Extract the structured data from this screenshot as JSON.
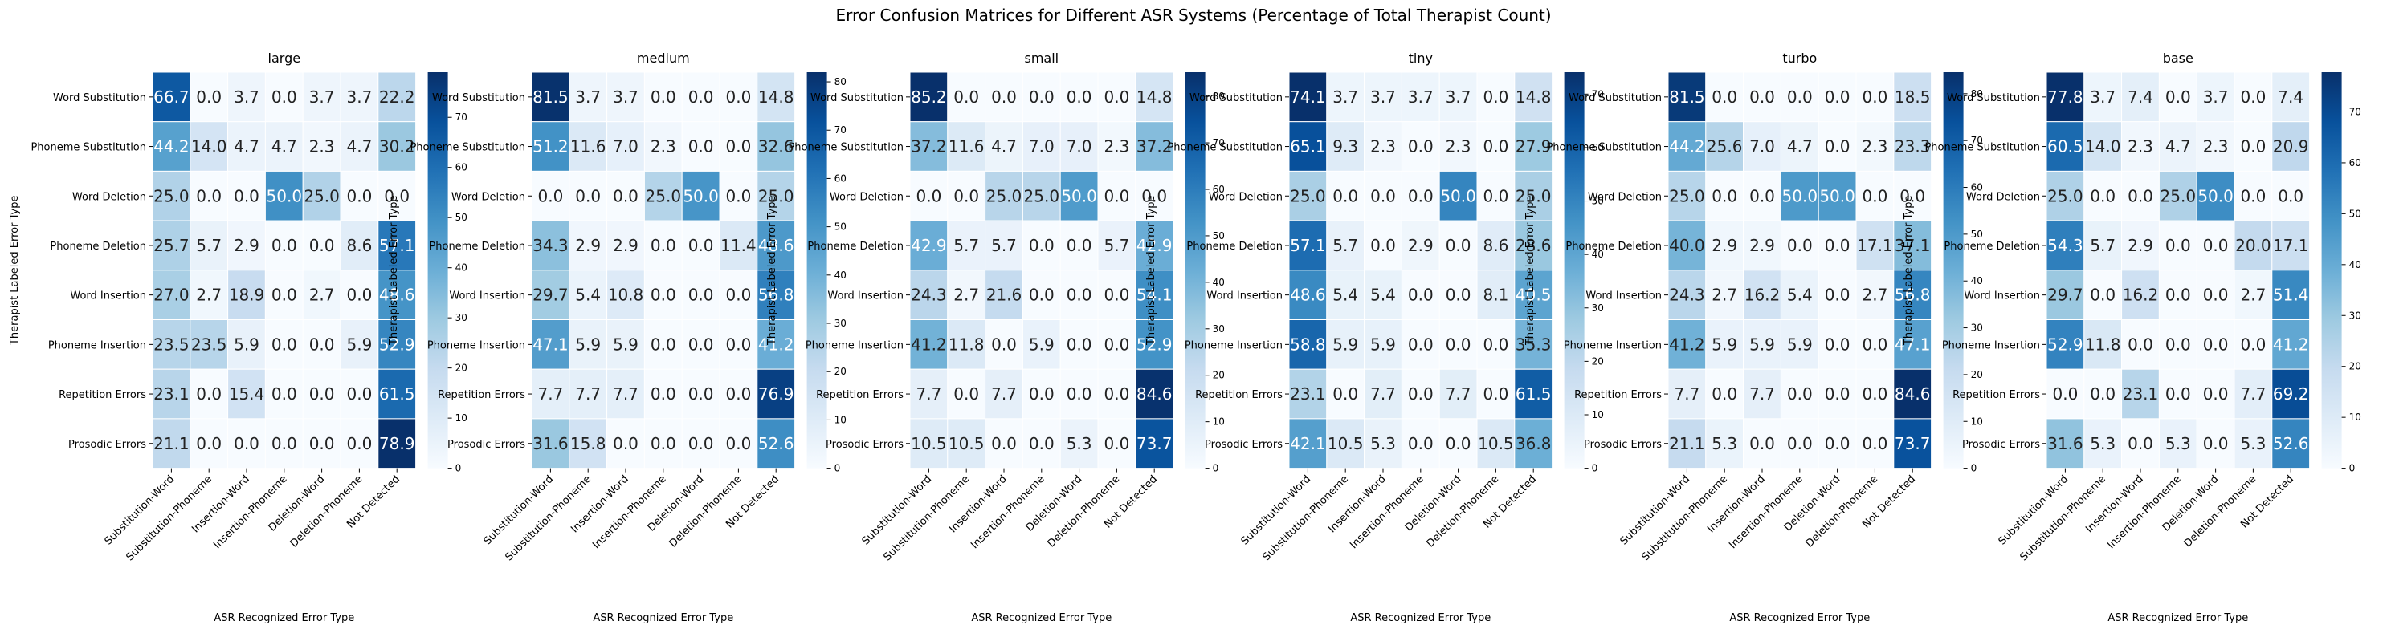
{
  "chart_data": {
    "type": "heatmap",
    "suptitle": "Error Confusion Matrices for Different ASR Systems (Percentage of Total Therapist Count)",
    "xlabel": "ASR Recognized Error Type",
    "ylabel": "Therapist Labeled Error Type",
    "rows": [
      "Word Substitution",
      "Phoneme Substitution",
      "Word Deletion",
      "Phoneme Deletion",
      "Word Insertion",
      "Phoneme Insertion",
      "Repetition Errors",
      "Prosodic Errors"
    ],
    "columns": [
      "Substitution-Word",
      "Substitution-Phoneme",
      "Insertion-Word",
      "Insertion-Phoneme",
      "Deletion-Word",
      "Deletion-Phoneme",
      "Not Detected"
    ],
    "colormap": [
      "#f7fbff",
      "#deebf7",
      "#c6dbef",
      "#9ecae1",
      "#6baed6",
      "#4292c6",
      "#2171b5",
      "#08519c",
      "#08306b"
    ],
    "panels": [
      {
        "title": "large",
        "vmax": 79,
        "ticks": [
          0,
          10,
          20,
          30,
          40,
          50,
          60,
          70
        ],
        "values": [
          [
            66.7,
            0.0,
            3.7,
            0.0,
            3.7,
            3.7,
            22.2
          ],
          [
            44.2,
            14.0,
            4.7,
            4.7,
            2.3,
            4.7,
            30.2
          ],
          [
            25.0,
            0.0,
            0.0,
            50.0,
            25.0,
            0.0,
            0.0
          ],
          [
            25.7,
            5.7,
            2.9,
            0.0,
            0.0,
            8.6,
            57.1
          ],
          [
            27.0,
            2.7,
            18.9,
            0.0,
            2.7,
            0.0,
            48.6
          ],
          [
            23.5,
            23.5,
            5.9,
            0.0,
            0.0,
            5.9,
            52.9
          ],
          [
            23.1,
            0.0,
            15.4,
            0.0,
            0.0,
            0.0,
            61.5
          ],
          [
            21.1,
            0.0,
            0.0,
            0.0,
            0.0,
            0.0,
            78.9
          ]
        ]
      },
      {
        "title": "medium",
        "vmax": 82,
        "ticks": [
          0,
          10,
          20,
          30,
          40,
          50,
          60,
          70,
          80
        ],
        "values": [
          [
            81.5,
            3.7,
            3.7,
            0.0,
            0.0,
            0.0,
            14.8
          ],
          [
            51.2,
            11.6,
            7.0,
            2.3,
            0.0,
            0.0,
            32.6
          ],
          [
            0.0,
            0.0,
            0.0,
            25.0,
            50.0,
            0.0,
            25.0
          ],
          [
            34.3,
            2.9,
            2.9,
            0.0,
            0.0,
            11.4,
            48.6
          ],
          [
            29.7,
            5.4,
            10.8,
            0.0,
            0.0,
            0.0,
            56.8
          ],
          [
            47.1,
            5.9,
            5.9,
            0.0,
            0.0,
            0.0,
            41.2
          ],
          [
            7.7,
            7.7,
            7.7,
            0.0,
            0.0,
            0.0,
            76.9
          ],
          [
            31.6,
            15.8,
            0.0,
            0.0,
            0.0,
            0.0,
            52.6
          ]
        ]
      },
      {
        "title": "small",
        "vmax": 85.2,
        "ticks": [
          0,
          10,
          20,
          30,
          40,
          50,
          60,
          70,
          80
        ],
        "values": [
          [
            85.2,
            0.0,
            0.0,
            0.0,
            0.0,
            0.0,
            14.8
          ],
          [
            37.2,
            11.6,
            4.7,
            7.0,
            7.0,
            2.3,
            37.2
          ],
          [
            0.0,
            0.0,
            25.0,
            25.0,
            50.0,
            0.0,
            0.0
          ],
          [
            42.9,
            5.7,
            5.7,
            0.0,
            0.0,
            5.7,
            42.9
          ],
          [
            24.3,
            2.7,
            21.6,
            0.0,
            0.0,
            0.0,
            54.1
          ],
          [
            41.2,
            11.8,
            0.0,
            5.9,
            0.0,
            0.0,
            52.9
          ],
          [
            7.7,
            0.0,
            7.7,
            0.0,
            0.0,
            0.0,
            84.6
          ],
          [
            10.5,
            10.5,
            0.0,
            0.0,
            5.3,
            0.0,
            73.7
          ]
        ]
      },
      {
        "title": "tiny",
        "vmax": 74.1,
        "ticks": [
          0,
          10,
          20,
          30,
          40,
          50,
          60,
          70
        ],
        "values": [
          [
            74.1,
            3.7,
            3.7,
            3.7,
            3.7,
            0.0,
            14.8
          ],
          [
            65.1,
            9.3,
            2.3,
            0.0,
            2.3,
            0.0,
            27.9
          ],
          [
            25.0,
            0.0,
            0.0,
            0.0,
            50.0,
            0.0,
            25.0
          ],
          [
            57.1,
            5.7,
            0.0,
            2.9,
            0.0,
            8.6,
            28.6
          ],
          [
            48.6,
            5.4,
            5.4,
            0.0,
            0.0,
            8.1,
            40.5
          ],
          [
            58.8,
            5.9,
            5.9,
            0.0,
            0.0,
            0.0,
            35.3
          ],
          [
            23.1,
            0.0,
            7.7,
            0.0,
            7.7,
            0.0,
            61.5
          ],
          [
            42.1,
            10.5,
            5.3,
            0.0,
            0.0,
            10.5,
            36.8
          ]
        ]
      },
      {
        "title": "turbo",
        "vmax": 84.6,
        "ticks": [
          0,
          10,
          20,
          30,
          40,
          50,
          60,
          70,
          80
        ],
        "values": [
          [
            81.5,
            0.0,
            0.0,
            0.0,
            0.0,
            0.0,
            18.5
          ],
          [
            44.2,
            25.6,
            7.0,
            4.7,
            0.0,
            2.3,
            23.3
          ],
          [
            25.0,
            0.0,
            0.0,
            50.0,
            50.0,
            0.0,
            0.0
          ],
          [
            40.0,
            2.9,
            2.9,
            0.0,
            0.0,
            17.1,
            37.1
          ],
          [
            24.3,
            2.7,
            16.2,
            5.4,
            0.0,
            2.7,
            56.8
          ],
          [
            41.2,
            5.9,
            5.9,
            5.9,
            0.0,
            0.0,
            47.1
          ],
          [
            7.7,
            0.0,
            7.7,
            0.0,
            0.0,
            0.0,
            84.6
          ],
          [
            21.1,
            5.3,
            0.0,
            0.0,
            0.0,
            0.0,
            73.7
          ]
        ]
      },
      {
        "title": "base",
        "vmax": 77.8,
        "ticks": [
          0,
          10,
          20,
          30,
          40,
          50,
          60,
          70
        ],
        "values": [
          [
            77.8,
            3.7,
            7.4,
            0.0,
            3.7,
            0.0,
            7.4
          ],
          [
            60.5,
            14.0,
            2.3,
            4.7,
            2.3,
            0.0,
            20.9
          ],
          [
            25.0,
            0.0,
            0.0,
            25.0,
            50.0,
            0.0,
            0.0
          ],
          [
            54.3,
            5.7,
            2.9,
            0.0,
            0.0,
            20.0,
            17.1
          ],
          [
            29.7,
            0.0,
            16.2,
            0.0,
            0.0,
            2.7,
            51.4
          ],
          [
            52.9,
            11.8,
            0.0,
            0.0,
            0.0,
            0.0,
            41.2
          ],
          [
            0.0,
            0.0,
            23.1,
            0.0,
            0.0,
            7.7,
            69.2
          ],
          [
            31.6,
            5.3,
            0.0,
            5.3,
            0.0,
            5.3,
            52.6
          ]
        ]
      }
    ]
  }
}
